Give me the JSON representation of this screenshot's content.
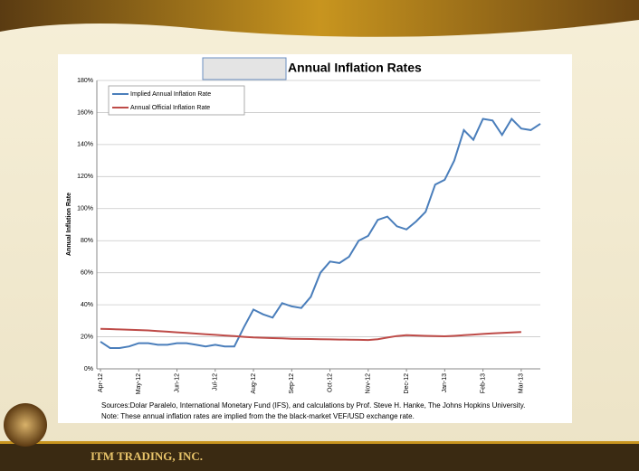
{
  "chart_data": {
    "type": "line",
    "title": "Annual Inflation Rates",
    "ylabel": "Annual Inflation Rate",
    "notes": [
      "Sources:Dolar Paralelo, International Monetary Fund (IFS), and calculations by Prof. Steve H. Hanke, The Johns Hopkins University.",
      "Note: These annual inflation rates are implied from the the black-market VEF/USD exchange rate."
    ],
    "categories": [
      "Apr-12",
      null,
      null,
      null,
      "May-12",
      null,
      null,
      null,
      "Jun-12",
      null,
      null,
      null,
      "Jul-12",
      null,
      null,
      null,
      "Aug-12",
      null,
      null,
      null,
      "Sep-12",
      null,
      null,
      null,
      "Oct-12",
      null,
      null,
      null,
      "Nov-12",
      null,
      null,
      null,
      "Dec-12",
      null,
      null,
      null,
      "Jan-13",
      null,
      null,
      null,
      "Feb-13",
      null,
      null,
      null,
      "Mar-13",
      null,
      null
    ],
    "series": [
      {
        "name": "Implied Annual Inflation Rate",
        "color": "#4a7ebb",
        "values": [
          17,
          13,
          13,
          14,
          16,
          16,
          15,
          15,
          16,
          16,
          15,
          14,
          15,
          14,
          14,
          26,
          37,
          34,
          32,
          41,
          39,
          38,
          45,
          60,
          67,
          66,
          70,
          80,
          83,
          93,
          95,
          89,
          87,
          92,
          98,
          115,
          118,
          130,
          149,
          143,
          156,
          155,
          146,
          156,
          150,
          149,
          153
        ]
      },
      {
        "name": "Annual Official Inflation Rate",
        "color": "#be4b48",
        "values": [
          25,
          24.8,
          24.6,
          24.4,
          24.2,
          24,
          23.6,
          23.2,
          22.8,
          22.4,
          22,
          21.6,
          21.2,
          20.8,
          20.4,
          20,
          19.6,
          19.4,
          19.2,
          19,
          18.8,
          18.7,
          18.6,
          18.5,
          18.4,
          18.3,
          18.2,
          18.1,
          18,
          18.5,
          19.5,
          20.5,
          21,
          20.8,
          20.6,
          20.4,
          20.3,
          20.6,
          21,
          21.4,
          21.8,
          22.1,
          22.4,
          22.7,
          23,
          null,
          null
        ]
      }
    ],
    "ylim": [
      0,
      180
    ],
    "yticks": [
      {
        "value": 0,
        "label": "0%"
      },
      {
        "value": 20,
        "label": "20%"
      },
      {
        "value": 40,
        "label": "40%"
      },
      {
        "value": 60,
        "label": "60%"
      },
      {
        "value": 80,
        "label": "80%"
      },
      {
        "value": 100,
        "label": "100%"
      },
      {
        "value": 120,
        "label": "120%"
      },
      {
        "value": 140,
        "label": "140%"
      },
      {
        "value": 160,
        "label": "160%"
      },
      {
        "value": 180,
        "label": "180%"
      }
    ],
    "grid": true,
    "legend": "upper left"
  },
  "footer": "ITM TRADING, INC."
}
